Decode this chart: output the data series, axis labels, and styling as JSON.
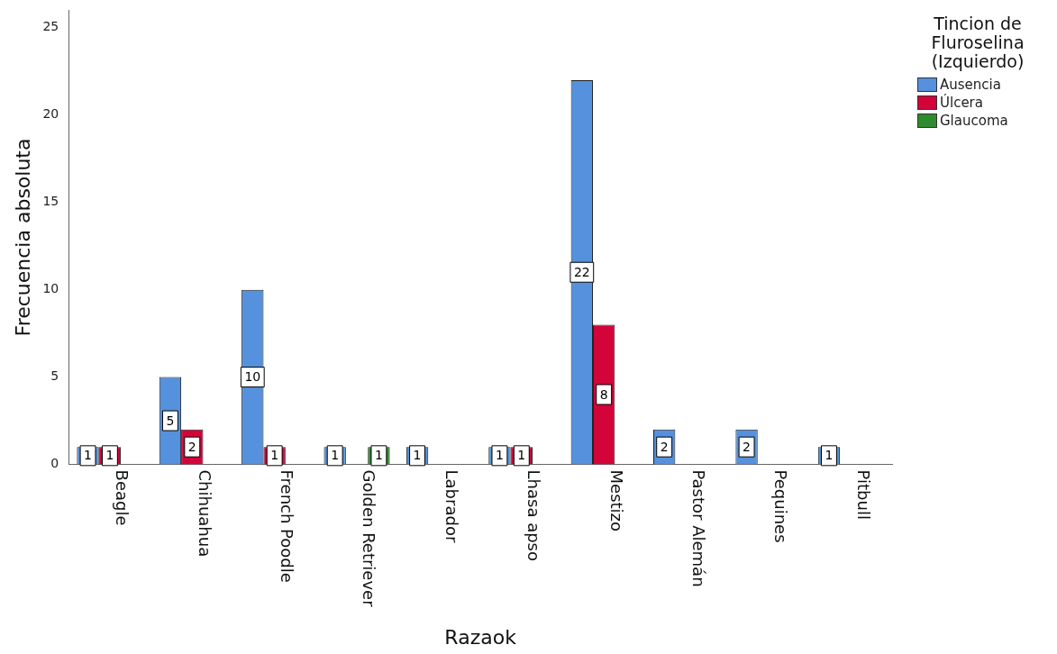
{
  "chart_data": {
    "type": "bar",
    "xlabel": "Razaok",
    "ylabel": "Frecuencia absoluta",
    "legend_title": "Tincion de Fluroselina (Izquierdo)",
    "categories": [
      "Beagle",
      "Chihuahua",
      "French Poodle",
      "Golden Retriever",
      "Labrador",
      "Lhasa apso",
      "Mestizo",
      "Pastor Alemán",
      "Pequines",
      "Pitbull"
    ],
    "series": [
      {
        "name": "Ausencia",
        "color": "#5591dc",
        "values": [
          1,
          5,
          10,
          1,
          1,
          1,
          22,
          2,
          2,
          1
        ]
      },
      {
        "name": "Úlcera",
        "color": "#d2043a",
        "values": [
          1,
          2,
          1,
          null,
          null,
          1,
          8,
          null,
          null,
          null
        ]
      },
      {
        "name": "Glaucoma",
        "color": "#2e8b2e",
        "values": [
          null,
          null,
          null,
          1,
          null,
          null,
          null,
          null,
          null,
          null
        ]
      }
    ],
    "ylim": [
      0,
      26
    ],
    "yticks": [
      0,
      5,
      10,
      15,
      20,
      25
    ],
    "grid": false,
    "legend": "top right",
    "data_labels": true
  }
}
